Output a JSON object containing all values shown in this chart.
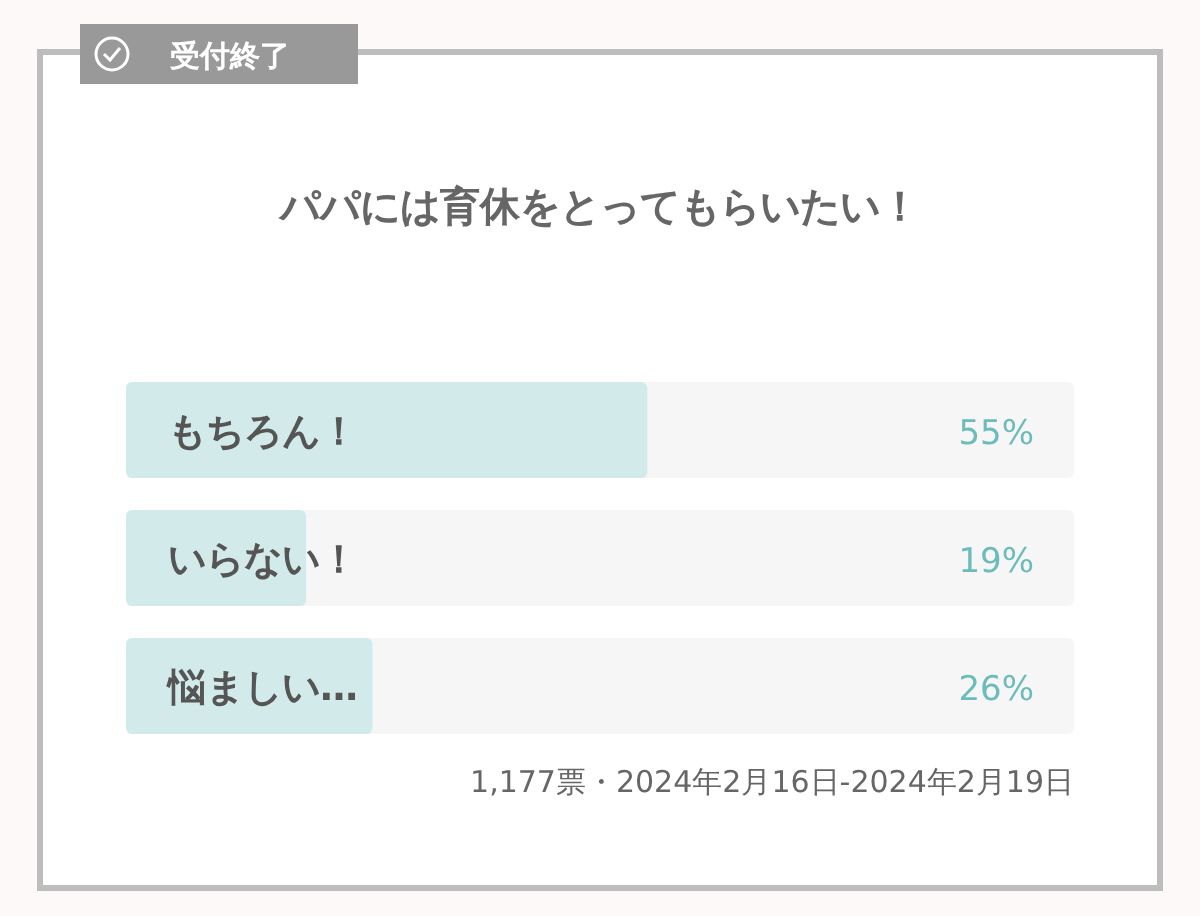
{
  "chart_data": {
    "type": "bar",
    "orientation": "horizontal",
    "title": "パパには育休をとってもらいたい！",
    "categories": [
      "もちろん！",
      "いらない！",
      "悩ましい…"
    ],
    "values": [
      55,
      19,
      26
    ],
    "value_labels": [
      "55%",
      "19%",
      "26%"
    ],
    "color": "#d3eaea",
    "xlim": [
      0,
      100
    ],
    "annotations": [
      "受付終了",
      "1,177票・2024年2月16日-2024年2月19日"
    ]
  }
}
